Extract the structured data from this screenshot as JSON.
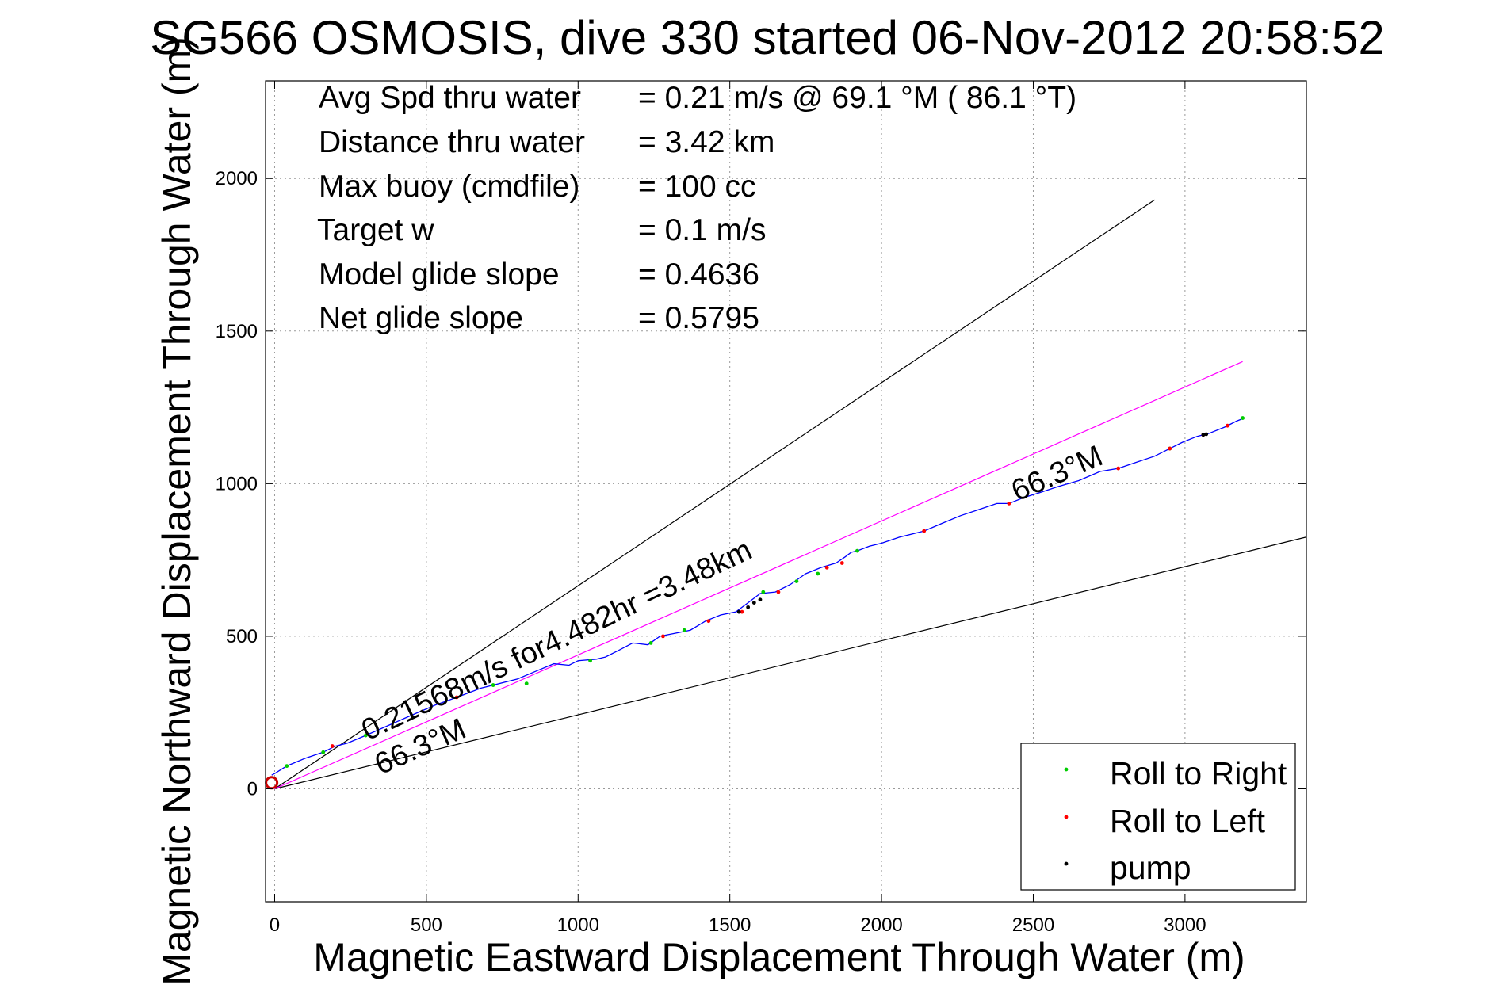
{
  "chart_data": {
    "type": "line",
    "title": "SG566 OSMOSIS, dive 330 started 06-Nov-2012 20:58:52",
    "xlabel": "Magnetic Eastward Displacement Through Water (m)",
    "ylabel": "Magnetic Northward Displacement Through Water (m)",
    "xlim": [
      -30,
      3400
    ],
    "ylim": [
      -370,
      2320
    ],
    "xticks": [
      0,
      500,
      1000,
      1500,
      2000,
      2500,
      3000
    ],
    "yticks": [
      0,
      500,
      1000,
      1500,
      2000
    ],
    "grid": true,
    "legend_placement": "bottom-right",
    "stats": [
      {
        "label": "Avg Spd thru water",
        "value": "=  0.21 m/s @  69.1 °M ( 86.1 °T)"
      },
      {
        "label": "Distance thru water",
        "value": "=  3.42 km"
      },
      {
        "label": "Max buoy (cmdfile)",
        "value": "= 100 cc"
      },
      {
        "label": "Target w",
        "value": "= 0.1 m/s"
      },
      {
        "label": "Model glide slope",
        "value": "= 0.4636"
      },
      {
        "label": "Net glide slope",
        "value": "= 0.5795"
      }
    ],
    "annotations": {
      "speed_text": "0.21568m/s for4.482hr =3.48km",
      "heading_lower": "66.3°M",
      "heading_upper": "66.3°M"
    },
    "reference_lines": [
      {
        "name": "upper-slope",
        "color": "#000000",
        "x": [
          0,
          2900
        ],
        "y": [
          0,
          1930
        ]
      },
      {
        "name": "lower-slope",
        "color": "#000000",
        "x": [
          0,
          3400
        ],
        "y": [
          0,
          825
        ]
      },
      {
        "name": "heading",
        "color": "#ff00ff",
        "x": [
          0,
          3190
        ],
        "y": [
          0,
          1400
        ]
      }
    ],
    "track": {
      "color": "#0000ff",
      "x": [
        -10,
        0,
        40,
        100,
        160,
        200,
        240,
        300,
        380,
        460,
        530,
        600,
        680,
        720,
        800,
        860,
        920,
        970,
        1000,
        1060,
        1090,
        1130,
        1180,
        1230,
        1270,
        1320,
        1370,
        1420,
        1470,
        1520,
        1560,
        1600,
        1650,
        1700,
        1750,
        1800,
        1850,
        1880,
        1900,
        1920,
        1960,
        2000,
        2060,
        2140,
        2200,
        2260,
        2320,
        2380,
        2420,
        2470,
        2520,
        2580,
        2650,
        2720,
        2780,
        2840,
        2900,
        2950,
        2990,
        3040,
        3080,
        3130,
        3170,
        3195
      ],
      "y": [
        45,
        50,
        75,
        100,
        120,
        140,
        150,
        175,
        210,
        245,
        275,
        300,
        330,
        340,
        360,
        385,
        410,
        405,
        420,
        425,
        432,
        452,
        478,
        472,
        500,
        510,
        520,
        550,
        570,
        580,
        610,
        640,
        645,
        670,
        705,
        725,
        740,
        760,
        775,
        780,
        795,
        805,
        825,
        845,
        870,
        895,
        915,
        935,
        935,
        955,
        970,
        990,
        1010,
        1040,
        1050,
        1070,
        1090,
        1115,
        1135,
        1155,
        1165,
        1185,
        1205,
        1215
      ]
    },
    "start_marker": {
      "x": -10,
      "y": 20,
      "color": "#cc0000"
    },
    "events": {
      "roll_right": {
        "color": "#00cc00",
        "x": [
          40,
          160,
          300,
          720,
          830,
          1040,
          1240,
          1350,
          1610,
          1720,
          1790,
          1920,
          2950,
          3190
        ],
        "y": [
          75,
          120,
          175,
          340,
          345,
          420,
          478,
          520,
          645,
          680,
          705,
          780,
          1115,
          1215
        ]
      },
      "roll_left": {
        "color": "#ff0000",
        "x": [
          190,
          600,
          1280,
          1430,
          1540,
          1660,
          1820,
          1870,
          2140,
          2420,
          2780,
          2950,
          3060,
          3140
        ],
        "y": [
          140,
          300,
          500,
          550,
          580,
          645,
          725,
          740,
          845,
          935,
          1050,
          1115,
          1160,
          1190
        ]
      },
      "pump": {
        "color": "#000000",
        "x": [
          1530,
          1560,
          1580,
          1600,
          3060,
          3070
        ],
        "y": [
          580,
          595,
          610,
          620,
          1160,
          1162
        ]
      }
    },
    "legend": [
      {
        "label": "Roll to Right",
        "color": "#00cc00"
      },
      {
        "label": "Roll to Left",
        "color": "#ff0000"
      },
      {
        "label": "pump",
        "color": "#000000"
      }
    ]
  }
}
